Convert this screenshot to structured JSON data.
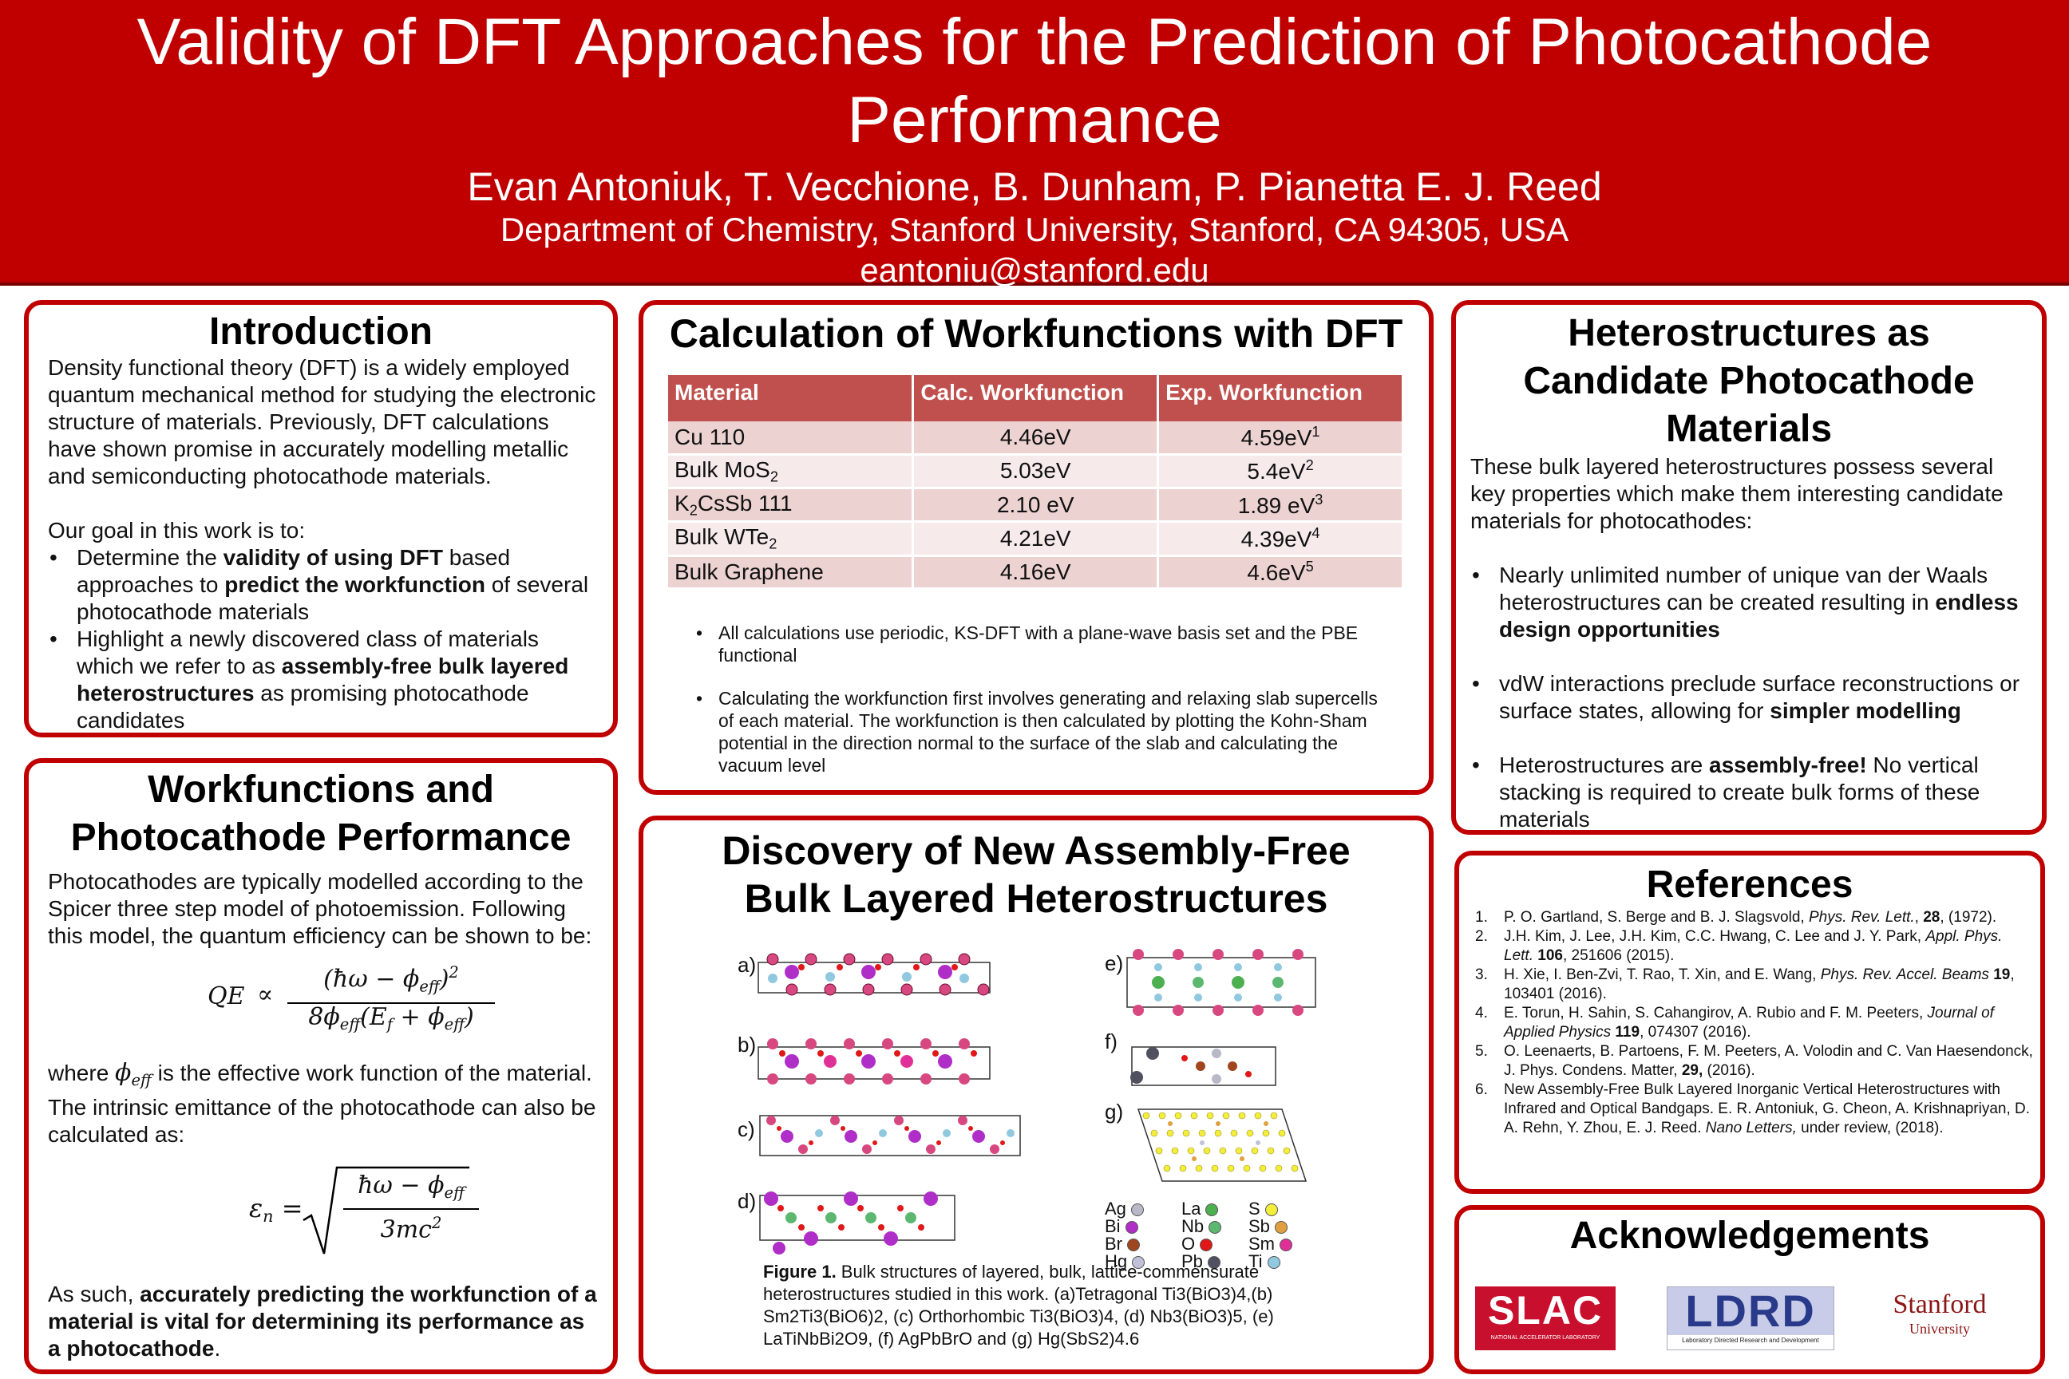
{
  "header": {
    "title": "Validity of DFT Approaches for the Prediction of Photocathode Performance",
    "authors": "Evan Antoniuk, T. Vecchione, B. Dunham, P. Pianetta E. J. Reed",
    "department": "Department of Chemistry, Stanford University, Stanford, CA 94305, USA",
    "email": "eantoniu@stanford.edu"
  },
  "intro": {
    "title": "Introduction",
    "para1": "Density functional theory (DFT) is a widely employed quantum mechanical method for studying the electronic structure of materials.  Previously, DFT calculations have shown promise in accurately modelling metallic and semiconducting photocathode materials.",
    "goal": "Our goal in this work is to:",
    "b1_pre": "Determine the ",
    "b1_bold1": "validity of using DFT",
    "b1_mid": " based approaches to ",
    "b1_bold2": "predict the workfunction",
    "b1_post": " of several photocathode materials",
    "b2_pre": "Highlight a newly discovered class of materials which we refer to as ",
    "b2_bold": "assembly-free bulk layered heterostructures",
    "b2_post": " as promising photocathode candidates"
  },
  "workfunctions": {
    "title_line1": "Workfunctions and",
    "title_line2": "Photocathode Performance",
    "para1": "Photocathodes are typically modelled according to the Spicer three step model of photoemission.  Following this model, the quantum efficiency can be shown to be:",
    "where_pre": "where ",
    "where_post": " is the effective work function of the material.",
    "para2": "The intrinsic emittance of the photocathode can also be calculated as:",
    "concl_pre": "As such, ",
    "concl_bold": "accurately predicting the workfunction of a material is vital for determining its performance as a photocathode",
    "concl_post": "."
  },
  "calc": {
    "title": "Calculation of Workfunctions with DFT",
    "headers": [
      "Material",
      "Calc. Workfunction",
      "Exp. Workfunction"
    ],
    "rows": [
      {
        "mat": "Cu 110",
        "calc": "4.46eV",
        "exp": "4.59eV",
        "ref": "1"
      },
      {
        "mat": "Bulk MoS",
        "matsub": "2",
        "calc": "5.03eV",
        "exp": "5.4eV",
        "ref": "2"
      },
      {
        "mat_pre": "K",
        "mat_sub": "2",
        "mat_post": "CsSb 111",
        "calc": "2.10 eV",
        "exp": "1.89 eV",
        "ref": "3"
      },
      {
        "mat": "Bulk WTe",
        "matsub": "2",
        "calc": "4.21eV",
        "exp": "4.39eV",
        "ref": "4"
      },
      {
        "mat": "Bulk Graphene",
        "calc": "4.16eV",
        "exp": "4.6eV",
        "ref": "5"
      }
    ],
    "bullet1": "All calculations use periodic, KS-DFT with a plane-wave basis set and the PBE functional",
    "bullet2": "Calculating the workfunction first involves generating and relaxing slab supercells of each material.  The workfunction is then calculated by plotting the Kohn-Sham potential in the direction normal to the surface of the slab and calculating the vacuum level"
  },
  "discovery": {
    "title_line1": "Discovery of New Assembly-Free",
    "title_line2": "Bulk Layered Heterostructures",
    "labels": [
      "a)",
      "b)",
      "c)",
      "d)",
      "e)",
      "f)",
      "g)"
    ],
    "legend": [
      {
        "el": "Ag",
        "color": "#b8b8c8"
      },
      {
        "el": "La",
        "color": "#4caf50"
      },
      {
        "el": "S",
        "color": "#f2ee3a"
      },
      {
        "el": "Bi",
        "color": "#b02ec8"
      },
      {
        "el": "Nb",
        "color": "#5cb870"
      },
      {
        "el": "Sb",
        "color": "#e0a040"
      },
      {
        "el": "Br",
        "color": "#a0461e"
      },
      {
        "el": "O",
        "color": "#e01818"
      },
      {
        "el": "Sm",
        "color": "#e03098"
      },
      {
        "el": "Hg",
        "color": "#c0c0d8"
      },
      {
        "el": "Pb",
        "color": "#505060"
      },
      {
        "el": "Ti",
        "color": "#90c8e0"
      }
    ],
    "caption_label": "Figure 1.",
    "caption": " Bulk structures of layered, bulk, lattice-commensurate heterostructures studied in this work. (a)Tetragonal  Ti3(BiO3)4,(b) Sm2Ti3(BiO6)2, (c) Orthorhombic Ti3(BiO3)4, (d) Nb3(BiO3)5, (e) LaTiNbBi2O9, (f) AgPbBrO and (g) Hg(SbS2)4.6"
  },
  "hetero": {
    "title_line1": "Heterostructures as",
    "title_line2": "Candidate Photocathode",
    "title_line3": "Materials",
    "para": "These bulk layered heterostructures possess several key properties which make them interesting candidate materials for photocathodes:",
    "b1_pre": "Nearly unlimited number of unique van der Waals heterostructures can be created resulting in ",
    "b1_bold": "endless design opportunities",
    "b2_pre": "vdW interactions preclude surface reconstructions or surface states, allowing for ",
    "b2_bold": "simpler modelling",
    "b3_pre": "Heterostructures are ",
    "b3_bold": "assembly-free!",
    "b3_post": " No vertical stacking is required to create bulk forms of these materials"
  },
  "references": {
    "title": "References",
    "items": [
      {
        "n": "1.",
        "pre": "P. O. Gartland, S. Berge and B. J. Slagsvold, ",
        "journal": "Phys. Rev. Lett.",
        "post": ",  ",
        "vol": "28",
        "tail": ", (1972)."
      },
      {
        "n": "2.",
        "pre": "J.H. Kim, J. Lee, J.H. Kim, C.C. Hwang, C. Lee and J. Y. Park, ",
        "journal": "Appl. Phys. Lett.",
        "post": " ",
        "vol": "106",
        "tail": ", 251606 (2015)."
      },
      {
        "n": "3.",
        "pre": "H. Xie, I. Ben-Zvi, T. Rao, T. Xin, and E. Wang, ",
        "journal": "Phys. Rev. Accel. Beams",
        "post": " ",
        "vol": "19",
        "tail": ", 103401 (2016)."
      },
      {
        "n": "4.",
        "pre": "E. Torun, H. Sahin, S. Cahangirov, A. Rubio and F. M. Peeters, ",
        "journal": "Journal of Applied Physics",
        "post": " ",
        "vol": "119",
        "tail": ", 074307 (2016)."
      },
      {
        "n": "5.",
        "pre": "O. Leenaerts, B. Partoens, F. M. Peeters, A. Volodin and C. Van Haesendonck, J. Phys. Condens. Matter, ",
        "journal": "",
        "post": "",
        "vol": "29,",
        "tail": " (2016)."
      },
      {
        "n": "6.",
        "pre": "New Assembly-Free Bulk Layered Inorganic Vertical Heterostructures with Infrared and Optical Bandgaps. E. R. Antoniuk, G. Cheon,  A. Krishnapriyan, D. A. Rehn, Y. Zhou, E. J. Reed. ",
        "journal": "Nano Letters,",
        "post": "",
        "vol": "",
        "tail": " under review, (2018)."
      }
    ]
  },
  "ack": {
    "title": "Acknowledgements",
    "slac": "SLAC",
    "slac_sub": "NATIONAL ACCELERATOR LABORATORY",
    "ldrd": "LDRD",
    "ldrd_sub": "Laboratory Directed Research and Development",
    "stanford1": "Stanford",
    "stanford2": "University"
  }
}
